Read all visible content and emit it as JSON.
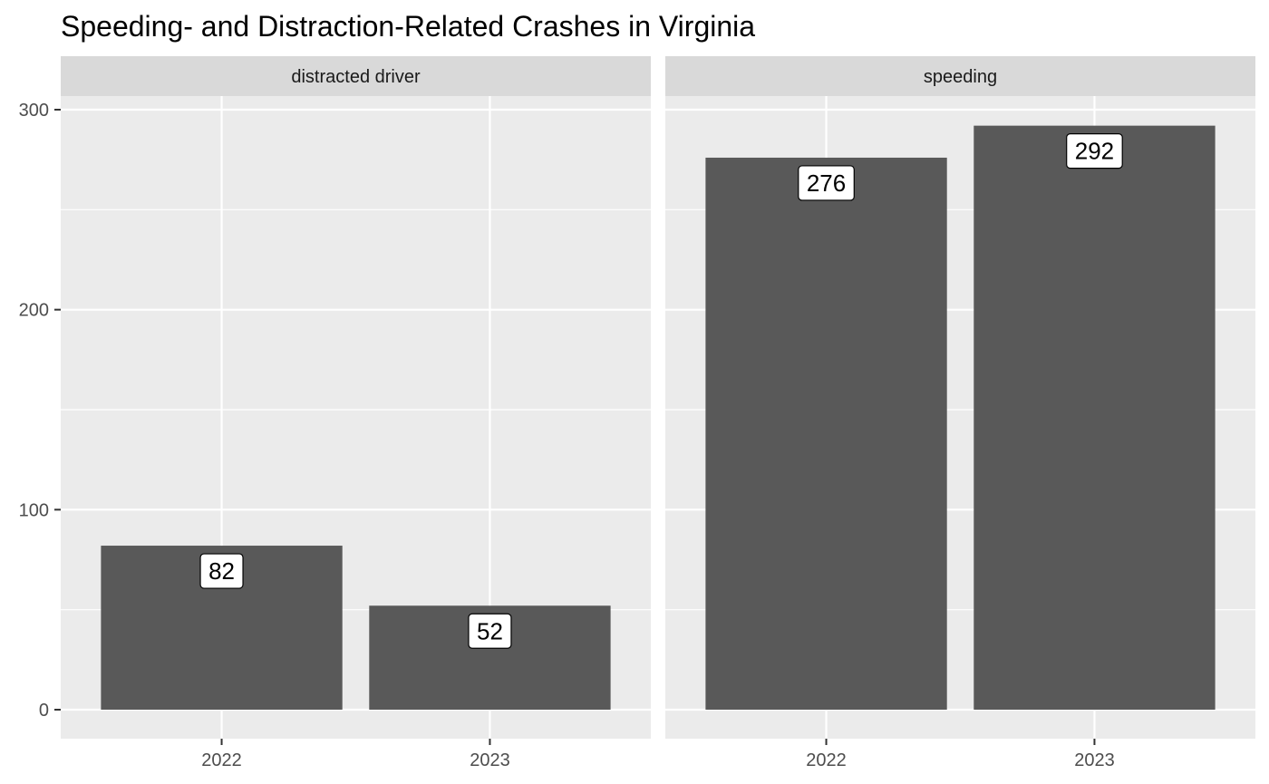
{
  "chart_data": {
    "type": "bar",
    "title": "Speeding- and Distraction-Related Crashes in Virginia",
    "xlabel": "",
    "ylabel": "",
    "ylim": [
      0,
      300
    ],
    "y_ticks": [
      0,
      100,
      200,
      300
    ],
    "grid": true,
    "categories": [
      "2022",
      "2023"
    ],
    "panels": [
      {
        "name": "distracted driver",
        "values": [
          82,
          52
        ],
        "labels": [
          "82",
          "52"
        ]
      },
      {
        "name": "speeding",
        "values": [
          276,
          292
        ],
        "labels": [
          "276",
          "292"
        ]
      }
    ],
    "colors": {
      "bar": "#595959",
      "panel_bg": "#ebebeb",
      "strip_bg": "#d9d9d9",
      "grid": "#ffffff",
      "label_bg": "#ffffff",
      "label_border": "#000000"
    }
  }
}
